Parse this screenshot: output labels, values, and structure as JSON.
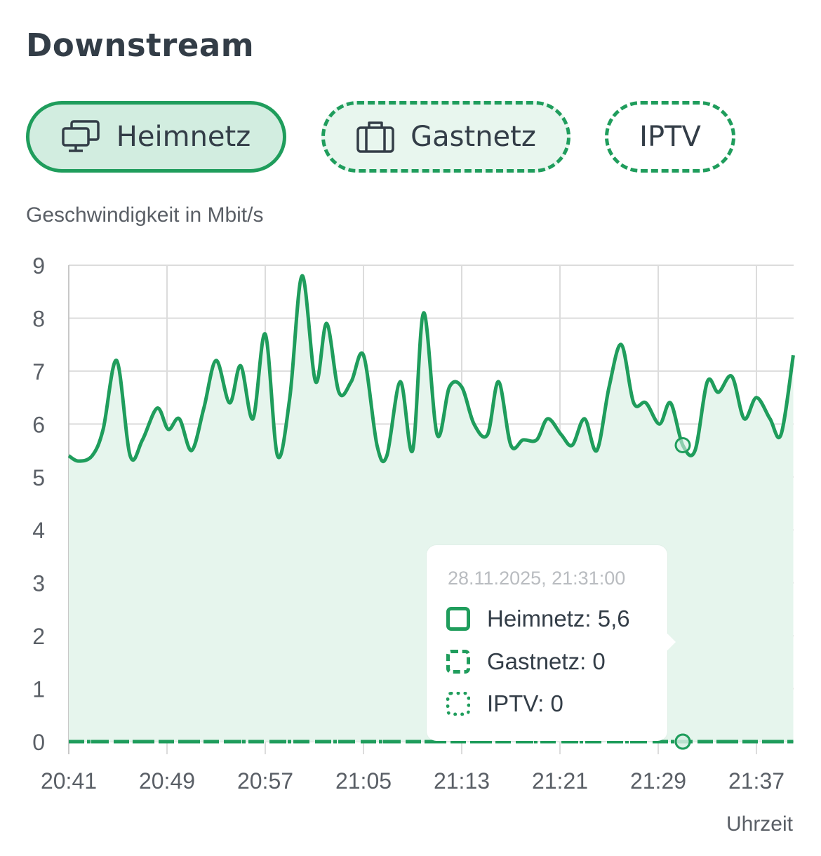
{
  "header": {
    "title": "Downstream"
  },
  "filters": [
    {
      "label": "Heimnetz",
      "icon": "monitors-icon",
      "state": "selected"
    },
    {
      "label": "Gastnetz",
      "icon": "suitcase-icon",
      "state": "dashed"
    },
    {
      "label": "IPTV",
      "icon": "",
      "state": "dotted"
    }
  ],
  "colors": {
    "accent": "#1f9d5c",
    "fill": "#e6f5ed",
    "grid": "#dcdcdc",
    "text": "#333d47",
    "muted": "#5a5f66"
  },
  "tooltip": {
    "time": "28.11.2025, 21:31:00",
    "rows": [
      {
        "text": "Heimnetz: 5,6",
        "style": "solid"
      },
      {
        "text": "Gastnetz: 0",
        "style": "dashed"
      },
      {
        "text": "IPTV: 0",
        "style": "dotted"
      }
    ]
  },
  "chart_data": {
    "type": "area",
    "ylabel": "Geschwindigkeit in Mbit/s",
    "xlabel": "Uhrzeit",
    "ylim": [
      0,
      9
    ],
    "y_ticks": [
      "0",
      "1",
      "2",
      "3",
      "4",
      "5",
      "6",
      "7",
      "8",
      "9"
    ],
    "x_ticks": [
      "20:41",
      "20:49",
      "20:57",
      "21:05",
      "21:13",
      "21:21",
      "21:29",
      "21:37"
    ],
    "x_range_minutes_from_first_tick": [
      0,
      59
    ],
    "grid": true,
    "series": [
      {
        "name": "Heimnetz",
        "style": "solid",
        "x": [
          0,
          0.8,
          1.9,
          2.8,
          3.9,
          5.0,
          6.0,
          7.2,
          8.1,
          9.0,
          10.0,
          11.0,
          12.0,
          13.1,
          14.0,
          15.0,
          16.0,
          17.0,
          18.0,
          19.0,
          20.1,
          21.0,
          22.0,
          23.0,
          24.0,
          25.1,
          25.9,
          27.0,
          28.0,
          28.9,
          30.0,
          31.0,
          32.0,
          33.0,
          34.1,
          35.0,
          36.0,
          37.0,
          38.1,
          39.0,
          40.1,
          41.0,
          42.0,
          43.0,
          44.0,
          45.0,
          46.0,
          47.0,
          48.1,
          49.0,
          50.0,
          51.0,
          52.0,
          52.9,
          54.0,
          55.0,
          56.0,
          57.1,
          58.0,
          59.0
        ],
        "values": [
          5.4,
          5.3,
          5.4,
          5.9,
          7.2,
          5.4,
          5.7,
          6.3,
          5.9,
          6.1,
          5.5,
          6.3,
          7.2,
          6.4,
          7.1,
          6.1,
          7.7,
          5.4,
          6.5,
          8.8,
          6.8,
          7.9,
          6.6,
          6.8,
          7.3,
          5.6,
          5.4,
          6.8,
          5.5,
          8.1,
          5.8,
          6.7,
          6.7,
          6.0,
          5.8,
          6.8,
          5.6,
          5.7,
          5.7,
          6.1,
          5.8,
          5.6,
          6.1,
          5.5,
          6.7,
          7.5,
          6.4,
          6.4,
          6.0,
          6.4,
          5.6,
          5.5,
          6.8,
          6.6,
          6.9,
          6.1,
          6.5,
          6.1,
          5.8,
          7.3
        ]
      },
      {
        "name": "Gastnetz",
        "style": "dashed",
        "values_constant": 0
      },
      {
        "name": "IPTV",
        "style": "dotted",
        "values_constant": 0
      }
    ],
    "highlight": {
      "x": 50,
      "values": [
        5.6,
        0,
        0
      ]
    }
  }
}
